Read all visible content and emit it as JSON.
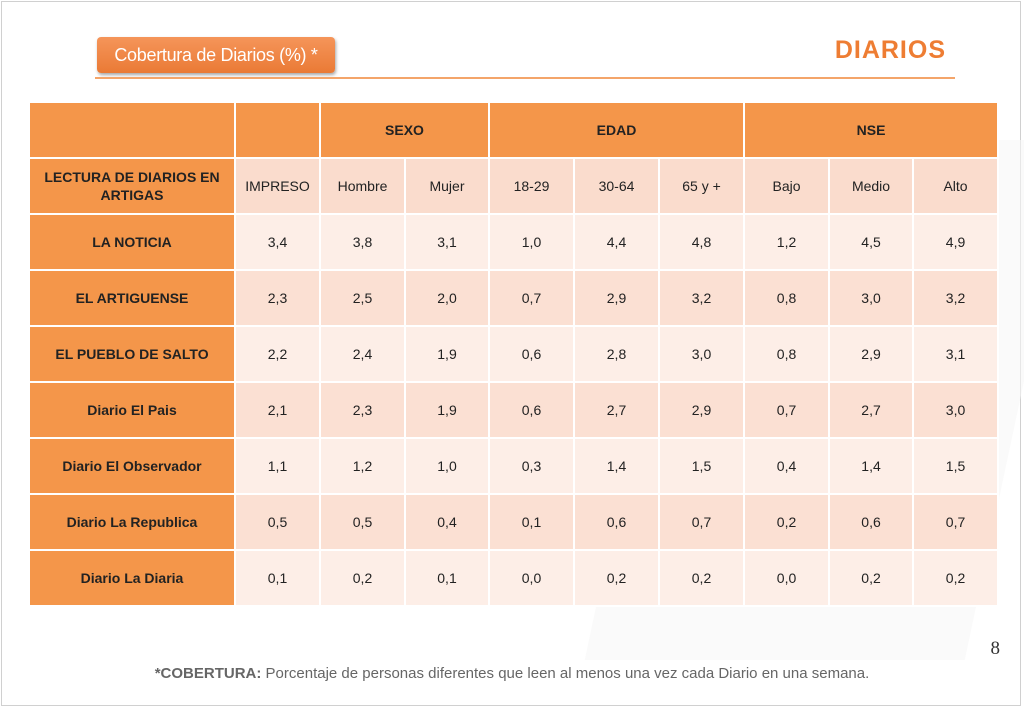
{
  "header": {
    "section_label": "Cobertura de Diarios (%) *",
    "title": "DIARIOS"
  },
  "table": {
    "groups": [
      "SEXO",
      "EDAD",
      "NSE"
    ],
    "corner_label": "LECTURA DE DIARIOS EN ARTIGAS",
    "subheaders": [
      "IMPRESO",
      "Hombre",
      "Mujer",
      "18-29",
      "30-64",
      "65 y +",
      "Bajo",
      "Medio",
      "Alto"
    ],
    "rows": [
      {
        "label": "LA NOTICIA",
        "values": [
          "3,4",
          "3,8",
          "3,1",
          "1,0",
          "4,4",
          "4,8",
          "1,2",
          "4,5",
          "4,9"
        ]
      },
      {
        "label": "EL ARTIGUENSE",
        "values": [
          "2,3",
          "2,5",
          "2,0",
          "0,7",
          "2,9",
          "3,2",
          "0,8",
          "3,0",
          "3,2"
        ]
      },
      {
        "label": "EL PUEBLO DE SALTO",
        "values": [
          "2,2",
          "2,4",
          "1,9",
          "0,6",
          "2,8",
          "3,0",
          "0,8",
          "2,9",
          "3,1"
        ]
      },
      {
        "label": "Diario El Pais",
        "values": [
          "2,1",
          "2,3",
          "1,9",
          "0,6",
          "2,7",
          "2,9",
          "0,7",
          "2,7",
          "3,0"
        ]
      },
      {
        "label": "Diario El Observador",
        "values": [
          "1,1",
          "1,2",
          "1,0",
          "0,3",
          "1,4",
          "1,5",
          "0,4",
          "1,4",
          "1,5"
        ]
      },
      {
        "label": "Diario La Republica",
        "values": [
          "0,5",
          "0,5",
          "0,4",
          "0,1",
          "0,6",
          "0,7",
          "0,2",
          "0,6",
          "0,7"
        ]
      },
      {
        "label": "Diario La Diaria",
        "values": [
          "0,1",
          "0,2",
          "0,1",
          "0,0",
          "0,2",
          "0,2",
          "0,0",
          "0,2",
          "0,2"
        ]
      }
    ]
  },
  "page_number": "8",
  "footnote": {
    "term": "*COBERTURA:",
    "text": "Porcentaje de personas diferentes que leen al menos una vez cada Diario en una semana."
  },
  "colors": {
    "accent": "#f4964a",
    "title": "#ee7d33",
    "cell_light": "#fdeee7",
    "cell_dark": "#fbe0d3"
  }
}
